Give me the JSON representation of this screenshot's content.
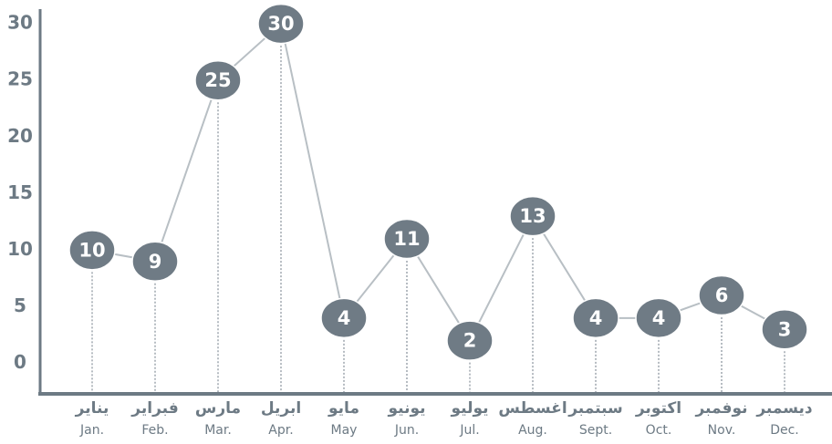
{
  "chart_data": {
    "type": "line",
    "categories": [
      "Jan.",
      "Feb.",
      "Mar.",
      "Apr.",
      "May",
      "Jun.",
      "Jul.",
      "Aug.",
      "Sept.",
      "Oct.",
      "Nov.",
      "Dec."
    ],
    "arabic_categories": [
      "يناير",
      "فبراير",
      "مارس",
      "ابريل",
      "مايو",
      "يونيو",
      "يوليو",
      "اغسطس",
      "سبتمبر",
      "اكتوبر",
      "نوفمبر",
      "ديسمبر"
    ],
    "values": [
      10,
      9,
      25,
      30,
      4,
      11,
      2,
      13,
      4,
      4,
      6,
      3
    ],
    "line_color": "#b8bfc4",
    "marker_color": "#6f7b85",
    "axis_color": "#6d7a84",
    "ylim": [
      -2.7,
      31.3
    ],
    "yticks": [
      0,
      5,
      10,
      15,
      20,
      25,
      30
    ],
    "grid": false
  }
}
